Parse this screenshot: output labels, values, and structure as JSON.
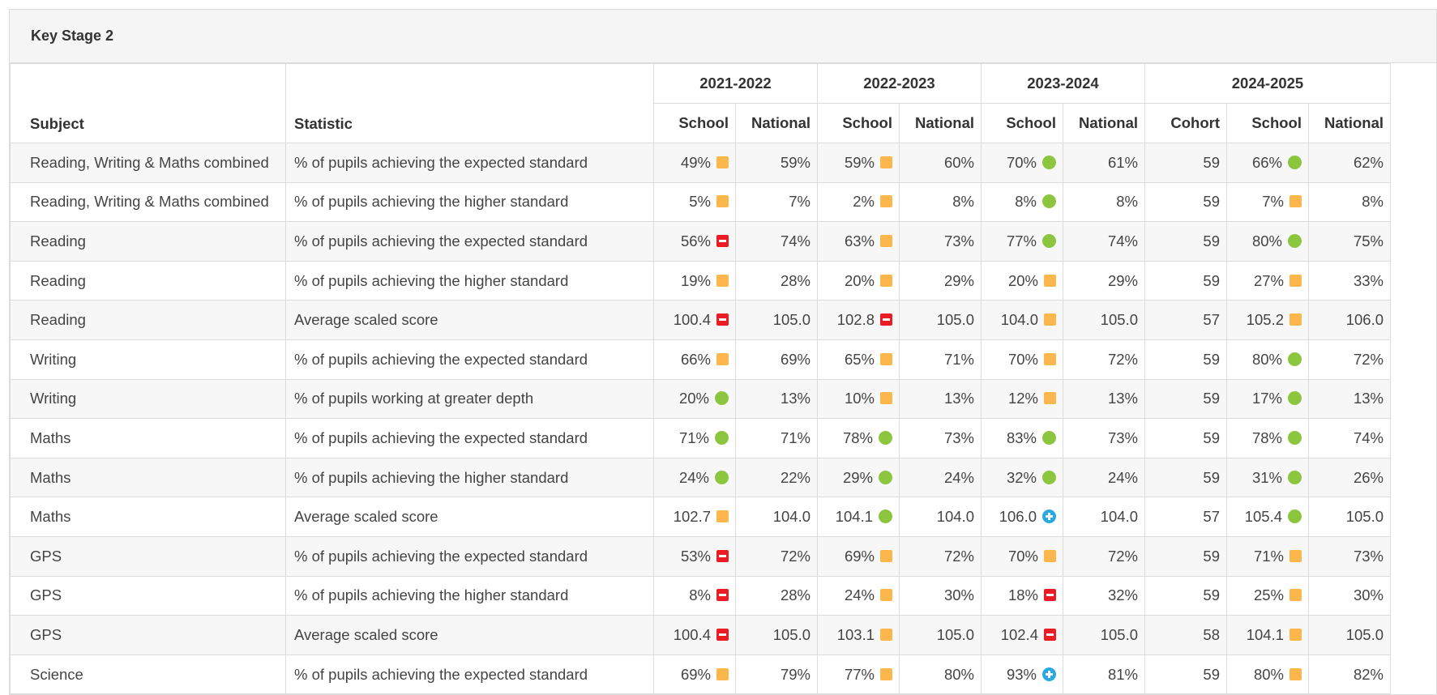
{
  "header": {
    "title": "Key Stage 2"
  },
  "table": {
    "columns": {
      "subject": "Subject",
      "statistic": "Statistic"
    },
    "years": [
      {
        "label": "2021-2022",
        "columns": [
          "School",
          "National"
        ]
      },
      {
        "label": "2022-2023",
        "columns": [
          "School",
          "National"
        ]
      },
      {
        "label": "2023-2024",
        "columns": [
          "School",
          "National"
        ]
      },
      {
        "label": "2024-2025",
        "columns": [
          "Cohort",
          "School",
          "National"
        ]
      }
    ],
    "rows": [
      {
        "subject": "Reading, Writing & Maths combined",
        "statistic": "% of pupils achieving the expected standard",
        "cells": [
          {
            "text": "49%",
            "flag": "amber"
          },
          {
            "text": "59%"
          },
          {
            "text": "59%",
            "flag": "amber"
          },
          {
            "text": "60%"
          },
          {
            "text": "70%",
            "flag": "green"
          },
          {
            "text": "61%"
          },
          {
            "text": "59"
          },
          {
            "text": "66%",
            "flag": "green"
          },
          {
            "text": "62%"
          }
        ]
      },
      {
        "subject": "Reading, Writing & Maths combined",
        "statistic": "% of pupils achieving the higher standard",
        "cells": [
          {
            "text": "5%",
            "flag": "amber"
          },
          {
            "text": "7%"
          },
          {
            "text": "2%",
            "flag": "amber"
          },
          {
            "text": "8%"
          },
          {
            "text": "8%",
            "flag": "green"
          },
          {
            "text": "8%"
          },
          {
            "text": "59"
          },
          {
            "text": "7%",
            "flag": "amber"
          },
          {
            "text": "8%"
          }
        ]
      },
      {
        "subject": "Reading",
        "statistic": "% of pupils achieving the expected standard",
        "cells": [
          {
            "text": "56%",
            "flag": "red"
          },
          {
            "text": "74%"
          },
          {
            "text": "63%",
            "flag": "amber"
          },
          {
            "text": "73%"
          },
          {
            "text": "77%",
            "flag": "green"
          },
          {
            "text": "74%"
          },
          {
            "text": "59"
          },
          {
            "text": "80%",
            "flag": "green"
          },
          {
            "text": "75%"
          }
        ]
      },
      {
        "subject": "Reading",
        "statistic": "% of pupils achieving the higher standard",
        "cells": [
          {
            "text": "19%",
            "flag": "amber"
          },
          {
            "text": "28%"
          },
          {
            "text": "20%",
            "flag": "amber"
          },
          {
            "text": "29%"
          },
          {
            "text": "20%",
            "flag": "amber"
          },
          {
            "text": "29%"
          },
          {
            "text": "59"
          },
          {
            "text": "27%",
            "flag": "amber"
          },
          {
            "text": "33%"
          }
        ]
      },
      {
        "subject": "Reading",
        "statistic": "Average scaled score",
        "cells": [
          {
            "text": "100.4",
            "flag": "red"
          },
          {
            "text": "105.0"
          },
          {
            "text": "102.8",
            "flag": "red"
          },
          {
            "text": "105.0"
          },
          {
            "text": "104.0",
            "flag": "amber"
          },
          {
            "text": "105.0"
          },
          {
            "text": "57"
          },
          {
            "text": "105.2",
            "flag": "amber"
          },
          {
            "text": "106.0"
          }
        ]
      },
      {
        "subject": "Writing",
        "statistic": "% of pupils achieving the expected standard",
        "cells": [
          {
            "text": "66%",
            "flag": "amber"
          },
          {
            "text": "69%"
          },
          {
            "text": "65%",
            "flag": "amber"
          },
          {
            "text": "71%"
          },
          {
            "text": "70%",
            "flag": "amber"
          },
          {
            "text": "72%"
          },
          {
            "text": "59"
          },
          {
            "text": "80%",
            "flag": "green"
          },
          {
            "text": "72%"
          }
        ]
      },
      {
        "subject": "Writing",
        "statistic": "% of pupils working at greater depth",
        "cells": [
          {
            "text": "20%",
            "flag": "green"
          },
          {
            "text": "13%"
          },
          {
            "text": "10%",
            "flag": "amber"
          },
          {
            "text": "13%"
          },
          {
            "text": "12%",
            "flag": "amber"
          },
          {
            "text": "13%"
          },
          {
            "text": "59"
          },
          {
            "text": "17%",
            "flag": "green"
          },
          {
            "text": "13%"
          }
        ]
      },
      {
        "subject": "Maths",
        "statistic": "% of pupils achieving the expected standard",
        "cells": [
          {
            "text": "71%",
            "flag": "green"
          },
          {
            "text": "71%"
          },
          {
            "text": "78%",
            "flag": "green"
          },
          {
            "text": "73%"
          },
          {
            "text": "83%",
            "flag": "green"
          },
          {
            "text": "73%"
          },
          {
            "text": "59"
          },
          {
            "text": "78%",
            "flag": "green"
          },
          {
            "text": "74%"
          }
        ]
      },
      {
        "subject": "Maths",
        "statistic": "% of pupils achieving the higher standard",
        "cells": [
          {
            "text": "24%",
            "flag": "green"
          },
          {
            "text": "22%"
          },
          {
            "text": "29%",
            "flag": "green"
          },
          {
            "text": "24%"
          },
          {
            "text": "32%",
            "flag": "green"
          },
          {
            "text": "24%"
          },
          {
            "text": "59"
          },
          {
            "text": "31%",
            "flag": "green"
          },
          {
            "text": "26%"
          }
        ]
      },
      {
        "subject": "Maths",
        "statistic": "Average scaled score",
        "cells": [
          {
            "text": "102.7",
            "flag": "amber"
          },
          {
            "text": "104.0"
          },
          {
            "text": "104.1",
            "flag": "green"
          },
          {
            "text": "104.0"
          },
          {
            "text": "106.0",
            "flag": "blue"
          },
          {
            "text": "104.0"
          },
          {
            "text": "57"
          },
          {
            "text": "105.4",
            "flag": "green"
          },
          {
            "text": "105.0"
          }
        ]
      },
      {
        "subject": "GPS",
        "statistic": "% of pupils achieving the expected standard",
        "cells": [
          {
            "text": "53%",
            "flag": "red"
          },
          {
            "text": "72%"
          },
          {
            "text": "69%",
            "flag": "amber"
          },
          {
            "text": "72%"
          },
          {
            "text": "70%",
            "flag": "amber"
          },
          {
            "text": "72%"
          },
          {
            "text": "59"
          },
          {
            "text": "71%",
            "flag": "amber"
          },
          {
            "text": "73%"
          }
        ]
      },
      {
        "subject": "GPS",
        "statistic": "% of pupils achieving the higher standard",
        "cells": [
          {
            "text": "8%",
            "flag": "red"
          },
          {
            "text": "28%"
          },
          {
            "text": "24%",
            "flag": "amber"
          },
          {
            "text": "30%"
          },
          {
            "text": "18%",
            "flag": "red"
          },
          {
            "text": "32%"
          },
          {
            "text": "59"
          },
          {
            "text": "25%",
            "flag": "amber"
          },
          {
            "text": "30%"
          }
        ]
      },
      {
        "subject": "GPS",
        "statistic": "Average scaled score",
        "cells": [
          {
            "text": "100.4",
            "flag": "red"
          },
          {
            "text": "105.0"
          },
          {
            "text": "103.1",
            "flag": "amber"
          },
          {
            "text": "105.0"
          },
          {
            "text": "102.4",
            "flag": "red"
          },
          {
            "text": "105.0"
          },
          {
            "text": "58"
          },
          {
            "text": "104.1",
            "flag": "amber"
          },
          {
            "text": "105.0"
          }
        ]
      },
      {
        "subject": "Science",
        "statistic": "% of pupils achieving the expected standard",
        "cells": [
          {
            "text": "69%",
            "flag": "amber"
          },
          {
            "text": "79%"
          },
          {
            "text": "77%",
            "flag": "amber"
          },
          {
            "text": "80%"
          },
          {
            "text": "93%",
            "flag": "blue"
          },
          {
            "text": "81%"
          },
          {
            "text": "59"
          },
          {
            "text": "80%",
            "flag": "amber"
          },
          {
            "text": "82%"
          }
        ]
      }
    ]
  }
}
